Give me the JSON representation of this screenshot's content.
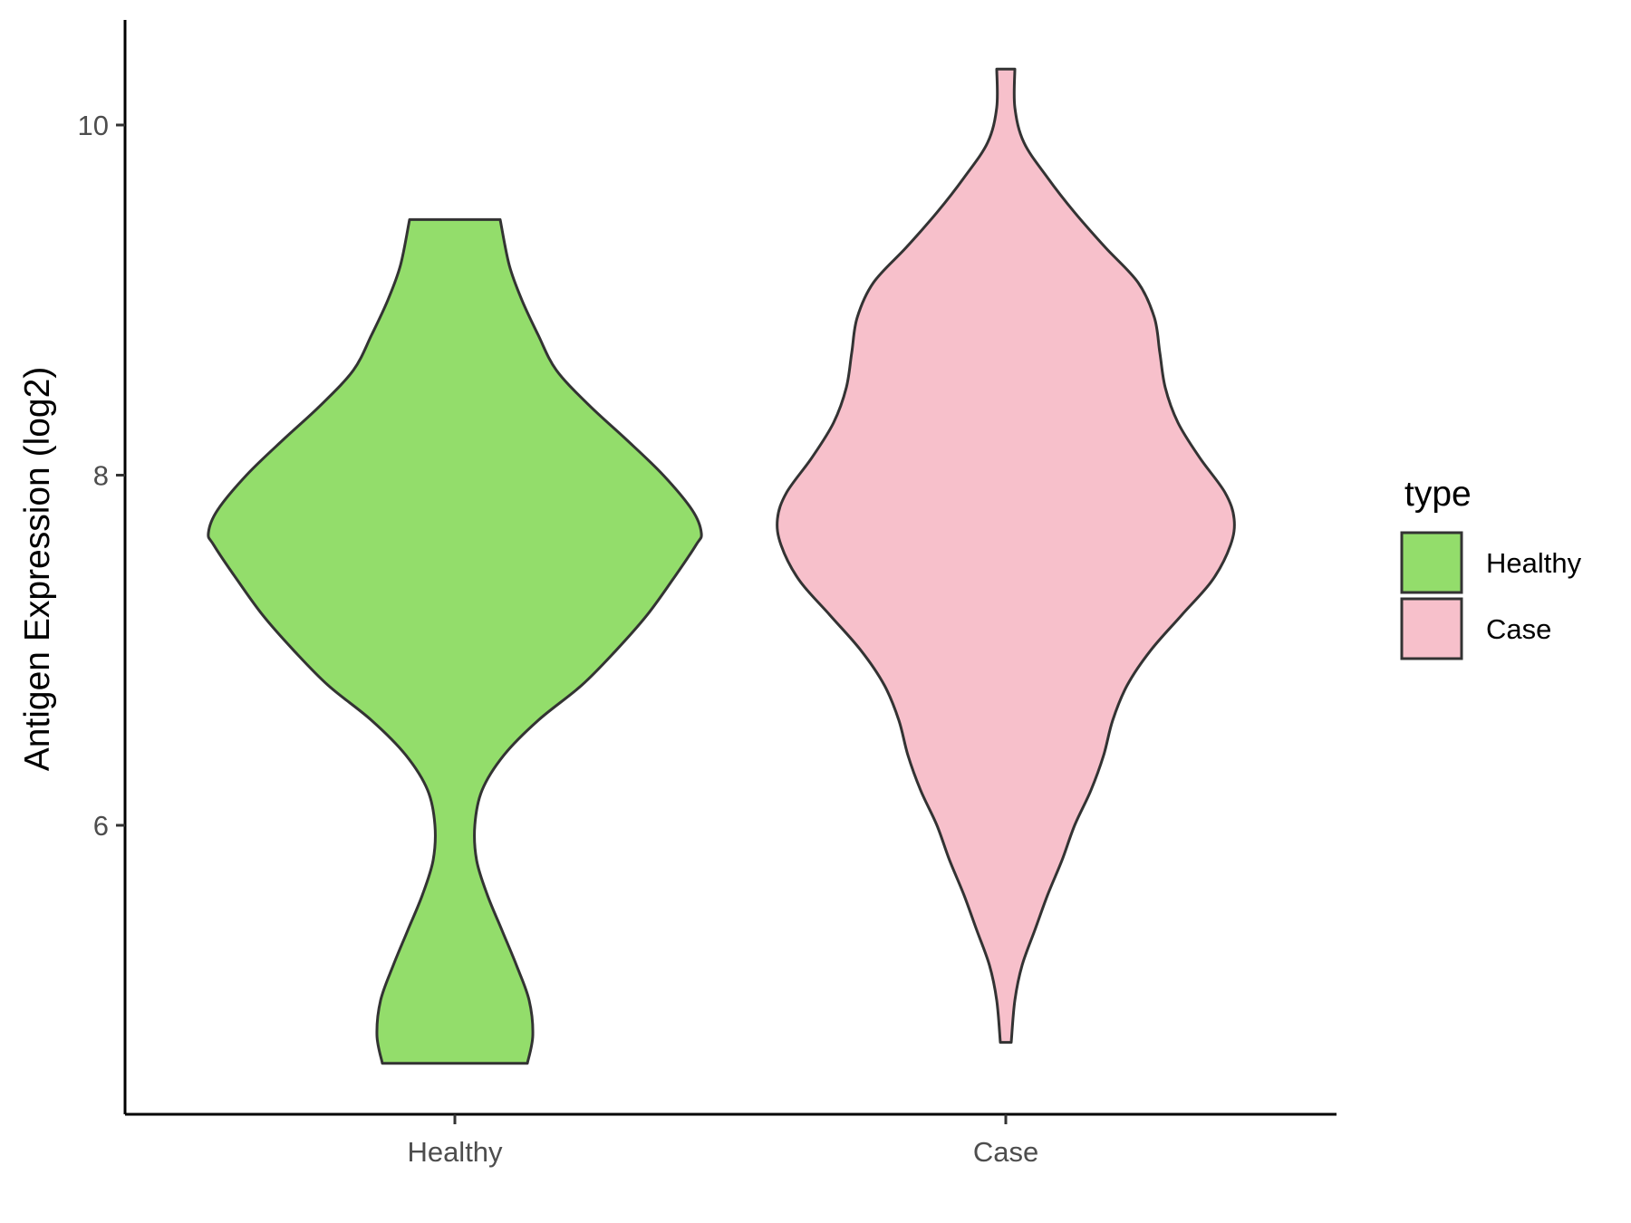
{
  "chart_data": {
    "type": "violin",
    "title": "",
    "xlabel": "",
    "ylabel": "Antigen Expression (log2)",
    "ylim": [
      4.4,
      10.6
    ],
    "yticks": [
      6,
      8,
      10
    ],
    "categories": [
      "Healthy",
      "Case"
    ],
    "legend": {
      "title": "type",
      "position": "right"
    },
    "series": [
      {
        "name": "Healthy",
        "color": "#93dd6b",
        "min": 4.64,
        "max": 9.46,
        "density_profile": [
          [
            4.64,
            0.4
          ],
          [
            4.8,
            0.43
          ],
          [
            5.0,
            0.41
          ],
          [
            5.2,
            0.34
          ],
          [
            5.4,
            0.26
          ],
          [
            5.6,
            0.18
          ],
          [
            5.8,
            0.12
          ],
          [
            6.0,
            0.11
          ],
          [
            6.2,
            0.15
          ],
          [
            6.4,
            0.27
          ],
          [
            6.6,
            0.46
          ],
          [
            6.8,
            0.7
          ],
          [
            7.0,
            0.89
          ],
          [
            7.2,
            1.06
          ],
          [
            7.4,
            1.2
          ],
          [
            7.6,
            1.33
          ],
          [
            7.67,
            1.36
          ],
          [
            7.8,
            1.31
          ],
          [
            8.0,
            1.15
          ],
          [
            8.2,
            0.95
          ],
          [
            8.4,
            0.74
          ],
          [
            8.6,
            0.56
          ],
          [
            8.8,
            0.46
          ],
          [
            9.0,
            0.37
          ],
          [
            9.2,
            0.3
          ],
          [
            9.46,
            0.25
          ]
        ]
      },
      {
        "name": "Case",
        "color": "#f7c0cb",
        "min": 4.76,
        "max": 10.32,
        "density_profile": [
          [
            4.76,
            0.03
          ],
          [
            5.0,
            0.05
          ],
          [
            5.2,
            0.09
          ],
          [
            5.4,
            0.16
          ],
          [
            5.6,
            0.23
          ],
          [
            5.8,
            0.31
          ],
          [
            6.0,
            0.38
          ],
          [
            6.2,
            0.47
          ],
          [
            6.4,
            0.54
          ],
          [
            6.6,
            0.59
          ],
          [
            6.8,
            0.67
          ],
          [
            7.0,
            0.8
          ],
          [
            7.2,
            0.97
          ],
          [
            7.4,
            1.14
          ],
          [
            7.6,
            1.24
          ],
          [
            7.75,
            1.26
          ],
          [
            7.9,
            1.21
          ],
          [
            8.1,
            1.07
          ],
          [
            8.3,
            0.95
          ],
          [
            8.5,
            0.88
          ],
          [
            8.7,
            0.85
          ],
          [
            8.9,
            0.82
          ],
          [
            9.1,
            0.73
          ],
          [
            9.3,
            0.55
          ],
          [
            9.5,
            0.38
          ],
          [
            9.7,
            0.23
          ],
          [
            9.9,
            0.1
          ],
          [
            10.1,
            0.05
          ],
          [
            10.32,
            0.05
          ]
        ]
      }
    ]
  }
}
